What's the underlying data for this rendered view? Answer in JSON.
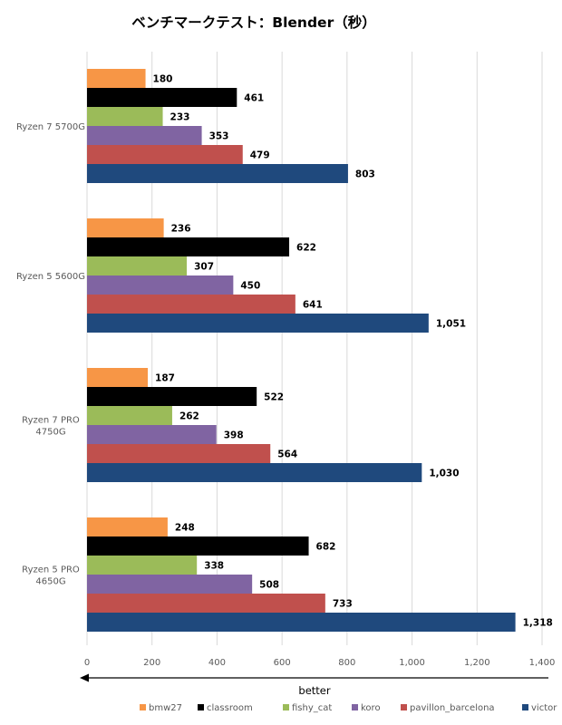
{
  "chart_data": {
    "type": "bar",
    "orientation": "horizontal",
    "title": "ベンチマークテスト：Blender（秒）",
    "xlabel": "better",
    "xlabel_arrow": "left",
    "ylabel": "",
    "xlim": [
      0,
      1400
    ],
    "x_ticks": [
      0,
      200,
      400,
      600,
      800,
      1000,
      1200,
      1400
    ],
    "x_tick_labels": [
      "0",
      "200",
      "400",
      "600",
      "800",
      "1,000",
      "1,200",
      "1,400"
    ],
    "grid": true,
    "legend_position": "bottom",
    "categories": [
      "Ryzen 7 5700G",
      "Ryzen 5 5600G",
      "Ryzen 7 PRO 4750G",
      "Ryzen 5 PRO 4650G"
    ],
    "category_labels": [
      [
        "Ryzen 7 5700G"
      ],
      [
        "Ryzen 5 5600G"
      ],
      [
        "Ryzen 7 PRO",
        "4750G"
      ],
      [
        "Ryzen 5 PRO",
        "4650G"
      ]
    ],
    "series": [
      {
        "name": "bmw27",
        "color": "#f79646",
        "values": [
          180,
          236,
          187,
          248
        ],
        "labels": [
          "180",
          "236",
          "187",
          "248"
        ]
      },
      {
        "name": "classroom",
        "color": "#000000",
        "values": [
          461,
          622,
          522,
          682
        ],
        "labels": [
          "461",
          "622",
          "522",
          "682"
        ]
      },
      {
        "name": "fishy_cat",
        "color": "#9bbb59",
        "values": [
          233,
          307,
          262,
          338
        ],
        "labels": [
          "233",
          "307",
          "262",
          "338"
        ]
      },
      {
        "name": "koro",
        "color": "#8064a2",
        "values": [
          353,
          450,
          398,
          508
        ],
        "labels": [
          "353",
          "450",
          "398",
          "508"
        ]
      },
      {
        "name": "pavillon_barcelona",
        "color": "#c0504d",
        "values": [
          479,
          641,
          564,
          733
        ],
        "labels": [
          "479",
          "641",
          "564",
          "733"
        ]
      },
      {
        "name": "victor",
        "color": "#1f497d",
        "values": [
          803,
          1051,
          1030,
          1318
        ],
        "labels": [
          "803",
          "1,051",
          "1,030",
          "1,318"
        ]
      }
    ]
  }
}
